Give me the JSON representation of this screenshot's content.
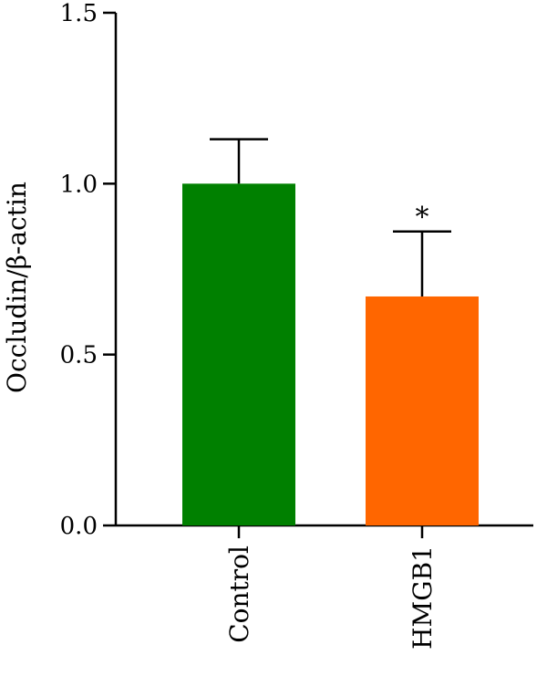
{
  "chart_data": {
    "type": "bar",
    "title": "",
    "xlabel": "",
    "ylabel": "Occludin/β-actin",
    "categories": [
      "Control",
      "HMGB1"
    ],
    "values": [
      1.0,
      0.67
    ],
    "error": [
      0.13,
      0.19
    ],
    "colors": [
      "#008000",
      "#ff6600"
    ],
    "annotations": [
      "",
      "*"
    ],
    "ylim": [
      0,
      1.5
    ],
    "yticks": [
      0.0,
      0.5,
      1.0,
      1.5
    ],
    "ytick_labels": [
      "0.0",
      "0.5",
      "1.0",
      "1.5"
    ],
    "grid": false,
    "legend": "none"
  }
}
